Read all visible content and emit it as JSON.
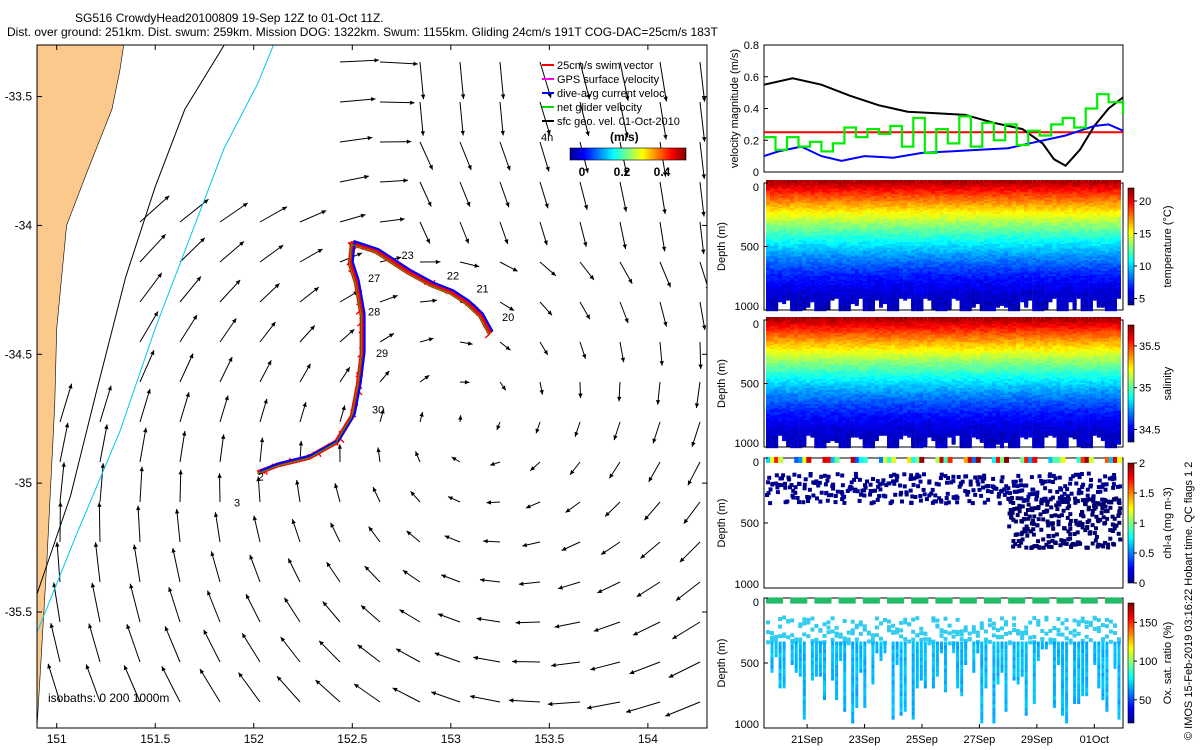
{
  "header": {
    "title_line1": "SG516 CrowdyHead20100809 19-Sep 12Z to 01-Oct 11Z.",
    "title_line2": "Dist. over ground: 251km. Dist. swum: 259km. Mission DOG: 1322km. Swum: 1155km. Gliding 24cm/s 191T COG-DAC=25cm/s 183T"
  },
  "legend": {
    "items": [
      {
        "label": "25cm/s swim vector",
        "color": "#ff0000"
      },
      {
        "label": "GPS surface velocity",
        "color": "#ff00ff"
      },
      {
        "label": "dive-avg current veloc.",
        "color": "#0000ff"
      },
      {
        "label": "net glider velocity",
        "color": "#00dd00"
      },
      {
        "label": "sfc geo. vel. 01-Oct-2010",
        "color": "#000000"
      }
    ],
    "colorbar_unit": "(m/s)",
    "colorbar_ticks": [
      "0",
      "0.2",
      "0.4"
    ],
    "vector_scale_note": "4h"
  },
  "isobaths_label": "isobaths: 0   200  1000m",
  "credit": "© IMOS 15-Feb-2019 03:16:22 Hobart time. QC flags 1  2",
  "chart_data": [
    {
      "type": "scatter",
      "title": "",
      "xlabel": "",
      "ylabel": "",
      "xlim": [
        150.9,
        154.3
      ],
      "ylim": [
        -35.95,
        -33.3
      ],
      "xticks": [
        "151",
        "151.5",
        "152",
        "152.5",
        "153",
        "153.5",
        "154"
      ],
      "xtick_values": [
        151,
        151.5,
        152,
        152.5,
        153,
        153.5,
        154
      ],
      "yticks": [
        "-33.5",
        "-34",
        "-34.5",
        "-35",
        "-35.5"
      ],
      "ytick_values": [
        -33.5,
        -34,
        -34.5,
        -35,
        -35.5
      ],
      "coast": [
        [
          150.9,
          -35.95
        ],
        [
          150.95,
          -35.3
        ],
        [
          150.99,
          -34.7
        ],
        [
          151.0,
          -34.4
        ],
        [
          151.05,
          -34.0
        ],
        [
          151.15,
          -33.8
        ],
        [
          151.28,
          -33.55
        ],
        [
          151.32,
          -33.4
        ],
        [
          151.34,
          -33.3
        ]
      ],
      "isobath_1000": [
        [
          150.9,
          -35.43
        ],
        [
          151.07,
          -35.05
        ],
        [
          151.2,
          -34.65
        ],
        [
          151.35,
          -34.2
        ],
        [
          151.5,
          -33.85
        ],
        [
          151.65,
          -33.55
        ],
        [
          151.85,
          -33.3
        ]
      ],
      "isobath_200": [
        [
          150.9,
          -35.58
        ],
        [
          151.1,
          -35.2
        ],
        [
          151.32,
          -34.8
        ],
        [
          151.5,
          -34.4
        ],
        [
          151.7,
          -34.0
        ],
        [
          151.85,
          -33.7
        ],
        [
          152.02,
          -33.45
        ],
        [
          152.1,
          -33.3
        ]
      ],
      "track": [
        [
          153.2,
          -34.42
        ],
        [
          153.15,
          -34.35
        ],
        [
          153.08,
          -34.3
        ],
        [
          153.0,
          -34.26
        ],
        [
          152.9,
          -34.23
        ],
        [
          152.78,
          -34.18
        ],
        [
          152.62,
          -34.1
        ],
        [
          152.5,
          -34.07
        ],
        [
          152.49,
          -34.15
        ],
        [
          152.52,
          -34.22
        ],
        [
          152.55,
          -34.35
        ],
        [
          152.55,
          -34.5
        ],
        [
          152.53,
          -34.62
        ],
        [
          152.5,
          -34.74
        ],
        [
          152.42,
          -34.84
        ],
        [
          152.28,
          -34.9
        ],
        [
          152.12,
          -34.93
        ],
        [
          152.02,
          -34.96
        ]
      ],
      "track_day_labels": [
        {
          "label": "20",
          "x": 153.26,
          "y": -34.37
        },
        {
          "label": "21",
          "x": 153.13,
          "y": -34.26
        },
        {
          "label": "22",
          "x": 152.98,
          "y": -34.21
        },
        {
          "label": "23",
          "x": 152.75,
          "y": -34.13
        },
        {
          "label": "27",
          "x": 152.58,
          "y": -34.22
        },
        {
          "label": "28",
          "x": 152.58,
          "y": -34.35
        },
        {
          "label": "29",
          "x": 152.62,
          "y": -34.51
        },
        {
          "label": "30",
          "x": 152.6,
          "y": -34.73
        },
        {
          "label": "2",
          "x": 152.02,
          "y": -34.99
        },
        {
          "label": "3",
          "x": 151.9,
          "y": -35.09
        }
      ]
    },
    {
      "type": "line",
      "ylabel": "velocity magnitude (m/s)",
      "xlim": [
        19.5,
        32.0
      ],
      "ylim": [
        0,
        0.8
      ],
      "yticks": [
        "0",
        "0.2",
        "0.4",
        "0.6",
        "0.8"
      ],
      "ytick_values": [
        0,
        0.2,
        0.4,
        0.6,
        0.8
      ],
      "series": [
        {
          "color": "#ff0000",
          "x": [
            19.5,
            32.0
          ],
          "y": [
            0.25,
            0.25
          ]
        },
        {
          "color": "#000000",
          "x": [
            19.5,
            20.5,
            21.5,
            22.5,
            23.5,
            24.5,
            25.5,
            26.5,
            27.5,
            28.5,
            29.2,
            29.6,
            30.0,
            30.5,
            31.0,
            31.5,
            32.0
          ],
          "y": [
            0.55,
            0.59,
            0.55,
            0.48,
            0.42,
            0.38,
            0.37,
            0.36,
            0.31,
            0.27,
            0.18,
            0.08,
            0.04,
            0.14,
            0.29,
            0.4,
            0.47
          ]
        },
        {
          "color": "#0000ff",
          "x": [
            19.5,
            20.0,
            20.8,
            21.5,
            22.2,
            23.0,
            24.0,
            25.0,
            26.0,
            27.0,
            28.0,
            29.0,
            30.0,
            30.5,
            31.0,
            31.5,
            32.0
          ],
          "y": [
            0.1,
            0.13,
            0.16,
            0.1,
            0.07,
            0.1,
            0.09,
            0.12,
            0.13,
            0.14,
            0.15,
            0.19,
            0.23,
            0.26,
            0.29,
            0.3,
            0.26
          ]
        },
        {
          "color": "#00ee00",
          "x": [
            19.5,
            19.9,
            20.3,
            20.7,
            21.1,
            21.5,
            21.9,
            22.3,
            22.7,
            23.1,
            23.5,
            23.9,
            24.3,
            24.7,
            25.1,
            25.5,
            25.9,
            26.3,
            26.7,
            27.1,
            27.5,
            27.9,
            28.3,
            28.7,
            29.1,
            29.5,
            29.9,
            30.3,
            30.7,
            31.1,
            31.5,
            32.0
          ],
          "y": [
            0.22,
            0.14,
            0.22,
            0.16,
            0.19,
            0.13,
            0.18,
            0.28,
            0.22,
            0.27,
            0.24,
            0.29,
            0.16,
            0.34,
            0.12,
            0.27,
            0.18,
            0.35,
            0.16,
            0.31,
            0.2,
            0.3,
            0.17,
            0.26,
            0.23,
            0.3,
            0.34,
            0.28,
            0.4,
            0.49,
            0.44,
            0.36
          ]
        }
      ]
    },
    {
      "type": "heatmap",
      "ylabel": "Depth (m)",
      "colorbar_label": "temperature (°C)",
      "colorbar_ticks": [
        "5",
        "10",
        "15",
        "20"
      ],
      "colorbar_values": [
        5,
        10,
        15,
        20
      ],
      "clim": [
        4,
        22
      ],
      "ylim": [
        1000,
        0
      ],
      "yticks": [
        "0",
        "500",
        "1000"
      ],
      "surface_value": 21,
      "deep_value": 5
    },
    {
      "type": "heatmap",
      "ylabel": "Depth (m)",
      "colorbar_label": "salinity",
      "colorbar_ticks": [
        "34.5",
        "35",
        "35.5"
      ],
      "colorbar_values": [
        34.5,
        35,
        35.5
      ],
      "clim": [
        34.35,
        35.75
      ],
      "ylim": [
        1000,
        0
      ],
      "yticks": [
        "0",
        "500",
        "1000"
      ],
      "surface_value": 35.6,
      "deep_value": 34.45
    },
    {
      "type": "scatter",
      "ylabel": "Depth (m)",
      "colorbar_label": "chl-a (mg m-3)",
      "colorbar_ticks": [
        "0",
        "0.5",
        "1",
        "1.5",
        "2"
      ],
      "colorbar_values": [
        0,
        0.5,
        1,
        1.5,
        2
      ],
      "clim": [
        0,
        2
      ],
      "ylim": [
        1000,
        0
      ],
      "yticks": [
        "0",
        "500",
        "1000"
      ]
    },
    {
      "type": "scatter",
      "ylabel": "Depth (m)",
      "colorbar_label": "Ox. sat. ratio (%)",
      "colorbar_ticks": [
        "50",
        "100",
        "150"
      ],
      "colorbar_values": [
        50,
        100,
        150
      ],
      "clim": [
        20,
        175
      ],
      "ylim": [
        1000,
        0
      ],
      "yticks": [
        "0",
        "500",
        "1000"
      ],
      "xticks": [
        "21Sep",
        "23Sep",
        "25Sep",
        "27Sep",
        "29Sep",
        "01Oct"
      ],
      "xtick_values": [
        21,
        23,
        25,
        27,
        29,
        31
      ]
    }
  ]
}
